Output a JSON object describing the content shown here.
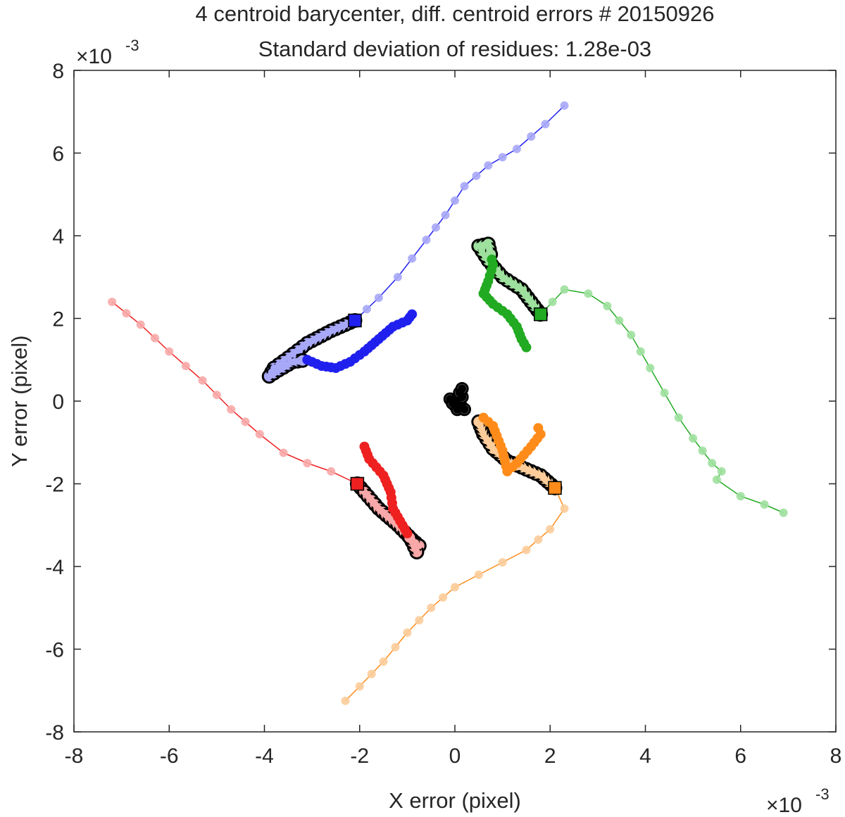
{
  "chart_data": {
    "type": "scatter",
    "title": "4 centroid barycenter, diff. centroid errors # 20150926",
    "subtitle": "Standard deviation of residues: 1.28e-03",
    "xlabel": "X error (pixel)",
    "ylabel": "Y error (pixel)",
    "x_exponent": "×10",
    "x_exponent_power": "-3",
    "y_exponent": "×10",
    "y_exponent_power": "-3",
    "xlim": [
      -8,
      8
    ],
    "ylim": [
      -8,
      8
    ],
    "x_ticks": [
      -8,
      -6,
      -4,
      -2,
      0,
      2,
      4,
      6,
      8
    ],
    "y_ticks": [
      -8,
      -6,
      -4,
      -2,
      0,
      2,
      4,
      6,
      8
    ],
    "x_tick_labels": [
      "-8",
      "-6",
      "-4",
      "-2",
      "0",
      "2",
      "4",
      "6",
      "8"
    ],
    "y_tick_labels": [
      "-8",
      "-6",
      "-4",
      "-2",
      "0",
      "2",
      "4",
      "6",
      "8"
    ],
    "grid": false,
    "legend": "none",
    "series": [
      {
        "color": "#2020ee",
        "light": "#a8a8f8",
        "square": [
          -2.1,
          1.95
        ],
        "light_track": [
          [
            -2.1,
            1.95
          ],
          [
            -1.6,
            2.5
          ],
          [
            -1.2,
            3.0
          ],
          [
            -0.6,
            3.9
          ],
          [
            -0.2,
            4.5
          ],
          [
            0.2,
            5.2
          ],
          [
            0.7,
            5.7
          ],
          [
            1.3,
            6.1
          ],
          [
            1.9,
            6.7
          ],
          [
            2.3,
            7.15
          ]
        ],
        "dark_track": [
          [
            -2.1,
            1.95
          ],
          [
            -2.6,
            1.7
          ],
          [
            -3.1,
            1.4
          ],
          [
            -3.5,
            1.05
          ],
          [
            -3.8,
            0.8
          ],
          [
            -3.9,
            0.6
          ],
          [
            -3.7,
            0.75
          ],
          [
            -3.4,
            0.95
          ],
          [
            -3.1,
            1.0
          ],
          [
            -2.8,
            0.85
          ],
          [
            -2.5,
            0.8
          ],
          [
            -2.2,
            0.95
          ],
          [
            -1.9,
            1.2
          ],
          [
            -1.6,
            1.5
          ],
          [
            -1.3,
            1.8
          ],
          [
            -1.0,
            1.95
          ],
          [
            -0.9,
            2.1
          ]
        ],
        "circled": [
          -2.1,
          -3.9
        ],
        "circle_size": 6
      },
      {
        "color": "#22aa22",
        "light": "#9ee09e",
        "square": [
          1.8,
          2.1
        ],
        "light_track": [
          [
            1.8,
            2.1
          ],
          [
            2.3,
            2.7
          ],
          [
            2.8,
            2.6
          ],
          [
            3.2,
            2.3
          ],
          [
            3.7,
            1.6
          ],
          [
            4.1,
            0.8
          ],
          [
            4.4,
            0.2
          ],
          [
            4.7,
            -0.4
          ],
          [
            5.0,
            -0.9
          ],
          [
            5.4,
            -1.5
          ],
          [
            5.6,
            -1.7
          ],
          [
            5.5,
            -1.9
          ],
          [
            6.0,
            -2.3
          ],
          [
            6.5,
            -2.5
          ],
          [
            6.9,
            -2.7
          ]
        ],
        "dark_track": [
          [
            1.8,
            2.1
          ],
          [
            1.4,
            2.7
          ],
          [
            1.0,
            3.0
          ],
          [
            0.7,
            3.4
          ],
          [
            0.5,
            3.75
          ],
          [
            0.7,
            3.8
          ],
          [
            0.8,
            3.3
          ],
          [
            0.7,
            2.9
          ],
          [
            0.6,
            2.6
          ],
          [
            0.8,
            2.35
          ],
          [
            1.1,
            2.1
          ],
          [
            1.3,
            1.8
          ],
          [
            1.4,
            1.5
          ],
          [
            1.5,
            1.3
          ]
        ],
        "circled": [
          1.8,
          0.5
        ],
        "circle_size": 6
      },
      {
        "color": "#ee2020",
        "light": "#f8a8a8",
        "square": [
          -2.05,
          -2.0
        ],
        "light_track": [
          [
            -2.05,
            -2.0
          ],
          [
            -2.6,
            -1.7
          ],
          [
            -3.1,
            -1.5
          ],
          [
            -3.6,
            -1.25
          ],
          [
            -4.1,
            -0.8
          ],
          [
            -4.7,
            -0.2
          ],
          [
            -5.3,
            0.5
          ],
          [
            -6.0,
            1.2
          ],
          [
            -6.6,
            1.85
          ],
          [
            -7.2,
            2.4
          ]
        ],
        "dark_track": [
          [
            -2.05,
            -2.0
          ],
          [
            -1.6,
            -2.6
          ],
          [
            -1.2,
            -3.0
          ],
          [
            -0.9,
            -3.35
          ],
          [
            -0.75,
            -3.5
          ],
          [
            -0.8,
            -3.65
          ],
          [
            -0.9,
            -3.4
          ],
          [
            -1.0,
            -3.2
          ],
          [
            -1.1,
            -3.0
          ],
          [
            -1.3,
            -2.6
          ],
          [
            -1.35,
            -2.2
          ],
          [
            -1.5,
            -1.8
          ],
          [
            -1.8,
            -1.4
          ],
          [
            -1.9,
            -1.1
          ]
        ],
        "circled": [
          -2.05,
          -0.75
        ],
        "circle_size": 6
      },
      {
        "color": "#ff8c1a",
        "light": "#fccc9a",
        "square": [
          2.1,
          -2.1
        ],
        "light_track": [
          [
            2.1,
            -2.1
          ],
          [
            2.3,
            -2.6
          ],
          [
            2.0,
            -3.1
          ],
          [
            1.5,
            -3.6
          ],
          [
            1.0,
            -3.9
          ],
          [
            0.5,
            -4.2
          ],
          [
            0.0,
            -4.5
          ],
          [
            -0.5,
            -5.0
          ],
          [
            -1.0,
            -5.6
          ],
          [
            -1.5,
            -6.3
          ],
          [
            -2.0,
            -6.9
          ],
          [
            -2.3,
            -7.25
          ]
        ],
        "dark_track": [
          [
            2.1,
            -2.1
          ],
          [
            1.8,
            -1.8
          ],
          [
            1.4,
            -1.6
          ],
          [
            1.1,
            -1.45
          ],
          [
            0.8,
            -1.15
          ],
          [
            0.6,
            -0.8
          ],
          [
            0.5,
            -0.5
          ],
          [
            0.6,
            -0.4
          ],
          [
            0.8,
            -0.6
          ],
          [
            1.0,
            -1.2
          ],
          [
            1.1,
            -1.7
          ],
          [
            1.3,
            -1.5
          ],
          [
            1.6,
            -1.1
          ],
          [
            1.8,
            -0.8
          ],
          [
            1.75,
            -0.65
          ]
        ],
        "circled": [
          2.1,
          0.0
        ],
        "circle_size": 6
      },
      {
        "color": "#000000",
        "light": "#808080",
        "points": [
          [
            -0.1,
            0.05
          ],
          [
            0.0,
            0.0
          ],
          [
            0.05,
            -0.05
          ],
          [
            0.1,
            -0.1
          ],
          [
            0.15,
            -0.15
          ],
          [
            0.15,
            0.1
          ],
          [
            0.0,
            -0.1
          ],
          [
            0.1,
            0.2
          ],
          [
            0.05,
            -0.2
          ],
          [
            0.2,
            -0.2
          ],
          [
            -0.05,
            -0.05
          ],
          [
            0.15,
            0.3
          ]
        ]
      }
    ]
  }
}
